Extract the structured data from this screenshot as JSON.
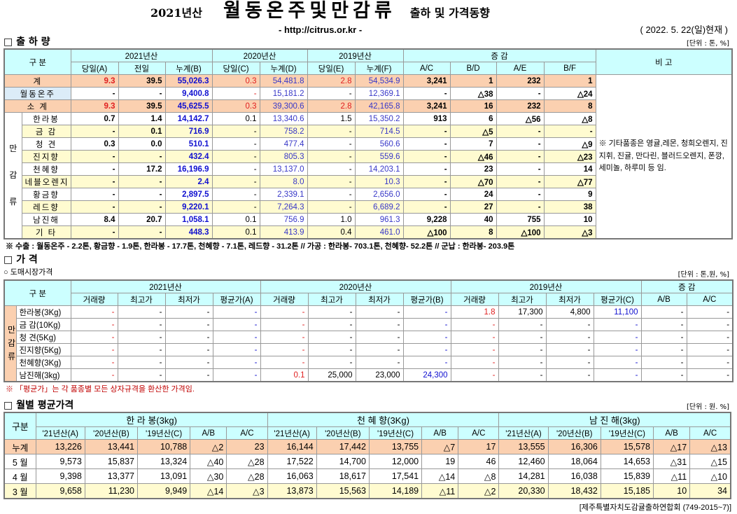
{
  "header": {
    "year": "2021년산",
    "title": "월동온주및만감류",
    "subtitle": "출하 및 가격동향",
    "url": "- http://citrus.or.kr -",
    "date": "( 2022. 5. 22(일)현재 )"
  },
  "shipment": {
    "section": "□ 출 하 량",
    "unit": "[단위 : 톤, %]",
    "group_label": "구   분",
    "years": [
      "2021년산",
      "2020년산",
      "2019년산"
    ],
    "change_label": "증   감",
    "remarks_label": "비 고",
    "subheaders": [
      "당일(A)",
      "전일",
      "누계(B)",
      "당일(C)",
      "누계(D)",
      "당일(E)",
      "누계(F)",
      "A/C",
      "B/D",
      "A/E",
      "B/F"
    ],
    "side_label": "만\n\n감\n\n류",
    "remarks": "※ 기타품종은 영귤,레몬, 청희오렌지, 진지휘, 진귤, 만다린, 블러드오렌지, 폰깡,세미놀, 하루미 등 임.",
    "rows": [
      {
        "label": "계",
        "style": "peach",
        "values": [
          "9.3",
          "39.5",
          "55,026.3",
          "0.3",
          "54,481.8",
          "2.8",
          "54,534.9",
          "3,241",
          "1",
          "232",
          "1"
        ]
      },
      {
        "label": "월동온주",
        "style": "wht",
        "values": [
          "-",
          "-",
          "9,400.8",
          "-",
          "15,181.2",
          "-",
          "12,369.1",
          "-",
          "△38",
          "-",
          "△24"
        ]
      },
      {
        "label": "소   계",
        "style": "peach",
        "values": [
          "9.3",
          "39.5",
          "45,625.5",
          "0.3",
          "39,300.6",
          "2.8",
          "42,165.8",
          "3,241",
          "16",
          "232",
          "8"
        ]
      },
      {
        "label": "한라봉",
        "style": "wht",
        "values": [
          "0.7",
          "1.4",
          "14,142.7",
          "0.1",
          "13,340.6",
          "1.5",
          "15,350.2",
          "913",
          "6",
          "△56",
          "△8"
        ]
      },
      {
        "label": "금    감",
        "style": "yel",
        "values": [
          "-",
          "0.1",
          "716.9",
          "-",
          "758.2",
          "-",
          "714.5",
          "-",
          "△5",
          "-",
          "-"
        ]
      },
      {
        "label": "청    견",
        "style": "wht",
        "values": [
          "0.3",
          "0.0",
          "510.1",
          "-",
          "477.4",
          "-",
          "560.6",
          "-",
          "7",
          "-",
          "△9"
        ]
      },
      {
        "label": "진지향",
        "style": "yel",
        "values": [
          "-",
          "-",
          "432.4",
          "-",
          "805.3",
          "-",
          "559.6",
          "-",
          "△46",
          "-",
          "△23"
        ]
      },
      {
        "label": "천혜향",
        "style": "wht",
        "values": [
          "-",
          "17.2",
          "16,196.9",
          "-",
          "13,137.0",
          "-",
          "14,203.1",
          "-",
          "23",
          "-",
          "14"
        ]
      },
      {
        "label": "네블오렌지",
        "style": "yel",
        "values": [
          "-",
          "-",
          "2.4",
          "-",
          "8.0",
          "-",
          "10.3",
          "-",
          "△70",
          "-",
          "△77"
        ]
      },
      {
        "label": "황금향",
        "style": "wht",
        "values": [
          "-",
          "-",
          "2,897.5",
          "-",
          "2,339.1",
          "-",
          "2,656.0",
          "-",
          "24",
          "-",
          "9"
        ]
      },
      {
        "label": "레드향",
        "style": "yel",
        "values": [
          "-",
          "-",
          "9,220.1",
          "-",
          "7,264.3",
          "-",
          "6,689.2",
          "-",
          "27",
          "-",
          "38"
        ]
      },
      {
        "label": "남진해",
        "style": "wht",
        "values": [
          "8.4",
          "20.7",
          "1,058.1",
          "0.1",
          "756.9",
          "1.0",
          "961.3",
          "9,228",
          "40",
          "755",
          "10"
        ]
      },
      {
        "label": "기    타",
        "style": "yel",
        "values": [
          "-",
          "-",
          "448.3",
          "0.1",
          "413.9",
          "0.4",
          "461.0",
          "△100",
          "8",
          "△100",
          "△3"
        ]
      }
    ],
    "footnote": "※ 수출 :  월동온주 - 2.2톤,  황금향 - 1.9톤,  한라봉 - 17.7톤,   천혜향 - 7.1톤,  레드향 - 31.2톤  //  가공  :  한라봉- 703.1톤,  천혜향- 52.2톤  //  군납 : 한라봉- 203.9톤"
  },
  "price": {
    "section": "□ 가     격",
    "subsection": "○ 도매시장가격",
    "unit": "[단위 : 톤,원, %]",
    "group_label": "구   분",
    "years": [
      "2021년산",
      "2020년산",
      "2019년산"
    ],
    "change_label": "증   감",
    "subheaders": [
      "거래량",
      "최고가",
      "최저가",
      "평균가(A)",
      "거래량",
      "최고가",
      "최저가",
      "평균가(B)",
      "거래량",
      "최고가",
      "최저가",
      "평균가(C)",
      "A/B",
      "A/C"
    ],
    "side_label": "만\n감\n류",
    "rows": [
      {
        "label": "한라봉(3Kg)",
        "values": [
          "-",
          "-",
          "-",
          "-",
          "-",
          "-",
          "-",
          "-",
          "1.8",
          "17,300",
          "4,800",
          "11,100",
          "-",
          "-"
        ]
      },
      {
        "label": "금 감(10Kg)",
        "values": [
          "-",
          "-",
          "-",
          "-",
          "-",
          "-",
          "-",
          "-",
          "-",
          "-",
          "-",
          "-",
          "-",
          "-"
        ]
      },
      {
        "label": "청   견(5Kg)",
        "values": [
          "-",
          "-",
          "-",
          "-",
          "-",
          "-",
          "-",
          "-",
          "-",
          "-",
          "-",
          "-",
          "-",
          "-"
        ]
      },
      {
        "label": "진지향(5Kg)",
        "values": [
          "-",
          "-",
          "-",
          "-",
          "-",
          "-",
          "-",
          "-",
          "-",
          "-",
          "-",
          "-",
          "-",
          "-"
        ]
      },
      {
        "label": "천혜향(3Kg)",
        "values": [
          "-",
          "-",
          "-",
          "-",
          "-",
          "-",
          "-",
          "-",
          "-",
          "-",
          "-",
          "-",
          "-",
          "-"
        ]
      },
      {
        "label": "남진해(3kg)",
        "values": [
          "-",
          "-",
          "-",
          "-",
          "0.1",
          "25,000",
          "23,000",
          "24,300",
          "-",
          "-",
          "-",
          "-",
          "-",
          "-"
        ]
      }
    ],
    "footnote": "※ 「평균가」는 각 품종별 모든 상자규격을 환산한 가격임."
  },
  "monthly": {
    "section": "□ 월별 평균가격",
    "unit": "[단위 : 원. %]",
    "group_label": "구분",
    "groups": [
      "한 라 봉(3kg)",
      "천 혜 향(3Kg)",
      "남 진 해(3kg)"
    ],
    "subheaders": [
      "'21년산(A)",
      "'20년산(B)",
      "'19년산(C)",
      "A/B",
      "A/C"
    ],
    "rows": [
      {
        "label": "누계",
        "style": "peach",
        "values": [
          "13,226",
          "13,441",
          "10,788",
          "△2",
          "23",
          "16,144",
          "17,442",
          "13,755",
          "△7",
          "17",
          "13,555",
          "16,306",
          "15,578",
          "△17",
          "△13"
        ]
      },
      {
        "label": "5 월",
        "style": "wht",
        "values": [
          "9,573",
          "15,837",
          "13,324",
          "△40",
          "△28",
          "17,522",
          "14,700",
          "12,000",
          "19",
          "46",
          "12,460",
          "18,064",
          "14,653",
          "△31",
          "△15"
        ]
      },
      {
        "label": "4 월",
        "style": "wht",
        "values": [
          "9,398",
          "13,377",
          "13,091",
          "△30",
          "△28",
          "16,063",
          "18,617",
          "17,541",
          "△14",
          "△8",
          "14,281",
          "16,038",
          "15,839",
          "△11",
          "△10"
        ]
      },
      {
        "label": "3 월",
        "style": "yel",
        "values": [
          "9,658",
          "11,230",
          "9,949",
          "△14",
          "△3",
          "13,873",
          "15,563",
          "14,189",
          "△11",
          "△2",
          "20,330",
          "18,432",
          "15,185",
          "10",
          "34"
        ]
      }
    ]
  },
  "source": "[제주특별자치도감귤출하연합회 (749-2015~7)]"
}
